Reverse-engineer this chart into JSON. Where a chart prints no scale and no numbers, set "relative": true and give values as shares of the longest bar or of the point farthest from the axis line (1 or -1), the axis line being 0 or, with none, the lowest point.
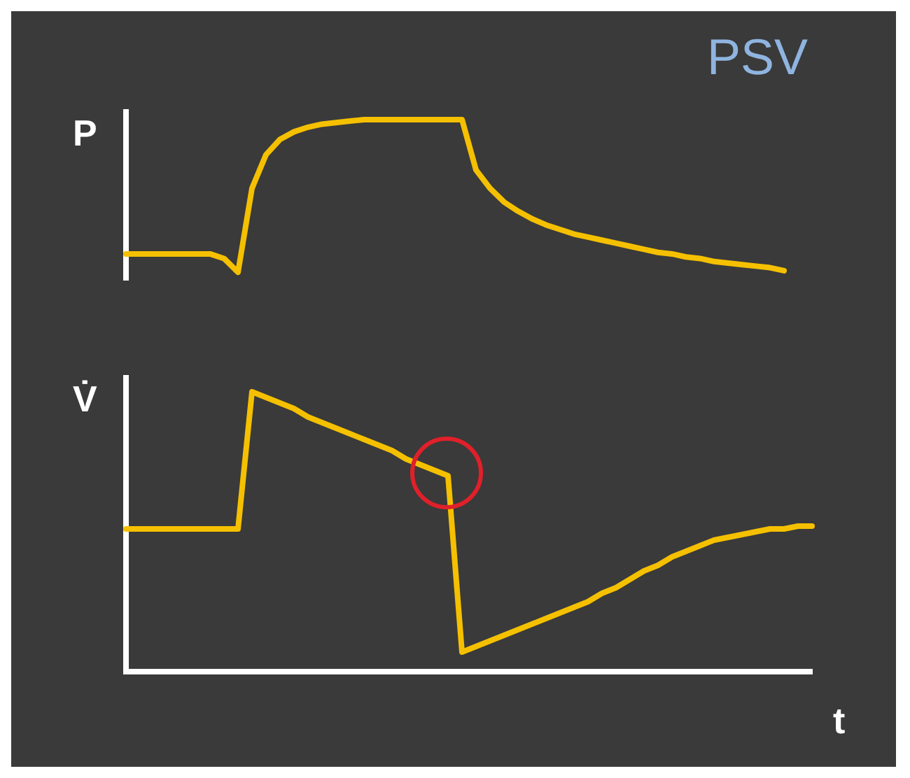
{
  "chart_data": [
    {
      "type": "line",
      "title": "PSV",
      "ylabel": "P",
      "relative": true,
      "categories": [
        null,
        null,
        null,
        null,
        null,
        null,
        null,
        null,
        null,
        null,
        null,
        null,
        null,
        null,
        null,
        null,
        null,
        null,
        null,
        null,
        null,
        null,
        null,
        null,
        null,
        null,
        null,
        null,
        null,
        null,
        null,
        null,
        null,
        null,
        null,
        null,
        null,
        null,
        null,
        null,
        null,
        null,
        null,
        null,
        null,
        null,
        null,
        null,
        null,
        null
      ],
      "series": [
        {
          "color": "#f5c000",
          "values": [
            0.12,
            0.12,
            0.12,
            0.12,
            0.12,
            0.12,
            0.12,
            0.09,
            0,
            0.55,
            0.77,
            0.87,
            0.92,
            0.95,
            0.97,
            0.98,
            0.99,
            1,
            1,
            1,
            1,
            1,
            1,
            1,
            1,
            0.67,
            0.55,
            0.46,
            0.4,
            0.35,
            0.31,
            0.28,
            0.25,
            0.23,
            0.21,
            0.19,
            0.17,
            0.15,
            0.13,
            0.12,
            0.1,
            0.09,
            0.07,
            0.06,
            0.05,
            0.04,
            0.03,
            0.01,
            null,
            null
          ]
        }
      ]
    },
    {
      "type": "line",
      "ylabel": "V̇",
      "xlabel": "t",
      "relative": true,
      "categories": [
        null,
        null,
        null,
        null,
        null,
        null,
        null,
        null,
        null,
        null,
        null,
        null,
        null,
        null,
        null,
        null,
        null,
        null,
        null,
        null,
        null,
        null,
        null,
        null,
        null,
        null,
        null,
        null,
        null,
        null,
        null,
        null,
        null,
        null,
        null,
        null,
        null,
        null,
        null,
        null,
        null,
        null,
        null,
        null,
        null,
        null,
        null,
        null,
        null,
        null
      ],
      "series": [
        {
          "color": "#f5c000",
          "values": [
            0.51,
            0.51,
            0.51,
            0.51,
            0.51,
            0.51,
            0.51,
            0.51,
            0.51,
            1,
            0.98,
            0.96,
            0.94,
            0.91,
            0.89,
            0.87,
            0.85,
            0.83,
            0.81,
            0.79,
            0.76,
            0.74,
            0.72,
            0.7,
            0.07,
            0.09,
            0.11,
            0.13,
            0.15,
            0.17,
            0.19,
            0.21,
            0.23,
            0.25,
            0.28,
            0.3,
            0.33,
            0.36,
            0.38,
            0.41,
            0.43,
            0.45,
            0.47,
            0.48,
            0.49,
            0.5,
            0.51,
            0.51,
            0.52,
            0.52
          ]
        }
      ]
    }
  ]
}
